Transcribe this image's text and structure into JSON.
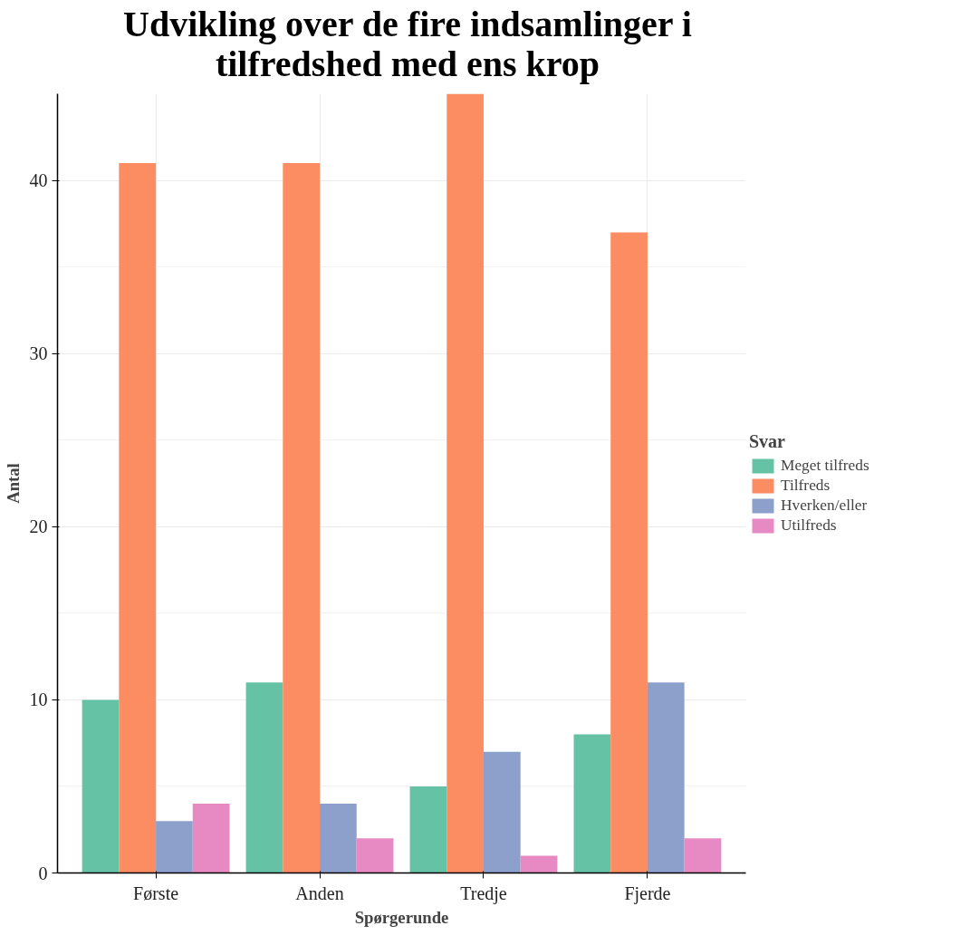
{
  "chart_data": {
    "type": "bar",
    "title": "Udvikling over de fire indsamlinger i tilfredshed med ens krop",
    "xlabel": "Spørgerunde",
    "ylabel": "Antal",
    "legend_title": "Svar",
    "categories": [
      "Første",
      "Anden",
      "Tredje",
      "Fjerde"
    ],
    "series": [
      {
        "name": "Meget tilfreds",
        "color": "#66c2a5",
        "values": [
          10,
          11,
          5,
          8
        ]
      },
      {
        "name": "Tilfreds",
        "color": "#fc8d62",
        "values": [
          41,
          41,
          45,
          37
        ]
      },
      {
        "name": "Hverken/eller",
        "color": "#8da0cb",
        "values": [
          3,
          4,
          7,
          11
        ]
      },
      {
        "name": "Utilfreds",
        "color": "#e78ac3",
        "values": [
          4,
          2,
          1,
          2
        ]
      }
    ],
    "ylim": [
      0,
      45
    ],
    "yticks": [
      0,
      10,
      20,
      30,
      40
    ],
    "grid": true,
    "legend": "right"
  }
}
